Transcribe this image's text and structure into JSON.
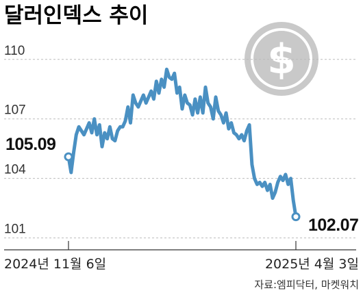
{
  "chart_data": {
    "type": "line",
    "title": "달러인덱스 추이",
    "source": "자료:엠피닥터, 마켓워치",
    "xlabel": "",
    "ylabel": "",
    "x_tick_labels": [
      "2024년 11월 6일",
      "2025년 4월 3일"
    ],
    "y_ticks": [
      110,
      107,
      104,
      101
    ],
    "ylim": [
      100.4,
      111.2
    ],
    "grid": true,
    "start": {
      "label": "105.09",
      "value": 105.09
    },
    "end": {
      "label": "102.07",
      "value": 102.07
    },
    "icon": "dollar-coin-icon",
    "colors": {
      "line": "#4a90c2",
      "coin": "#c9c9c9",
      "grid": "#bbbbbb"
    },
    "series": [
      {
        "values": [
          105.09,
          104.3,
          105.3,
          106.2,
          106.6,
          106.4,
          106.2,
          106.5,
          106.8,
          106.3,
          107.0,
          106.2,
          106.7,
          105.6,
          106.3,
          106.0,
          106.6,
          106.0,
          105.9,
          106.4,
          106.6,
          106.6,
          106.9,
          107.6,
          106.8,
          108.2,
          107.8,
          107.6,
          107.9,
          108.2,
          107.8,
          108.1,
          108.4,
          108.0,
          108.9,
          108.3,
          109.0,
          108.6,
          109.5,
          109.1,
          109.0,
          109.3,
          108.3,
          108.6,
          107.5,
          108.2,
          107.8,
          107.7,
          107.2,
          108.0,
          107.3,
          108.1,
          107.3,
          108.6,
          107.8,
          107.6,
          107.0,
          108.1,
          107.4,
          107.2,
          106.8,
          107.3,
          106.5,
          106.8,
          106.3,
          106.2,
          106.0,
          106.2,
          105.9,
          106.4,
          106.7,
          104.7,
          104.0,
          103.7,
          103.8,
          103.6,
          103.8,
          103.4,
          103.7,
          103.0,
          103.3,
          103.8,
          104.1,
          103.9,
          104.2,
          103.7,
          104.0,
          102.9,
          102.07
        ]
      }
    ]
  }
}
